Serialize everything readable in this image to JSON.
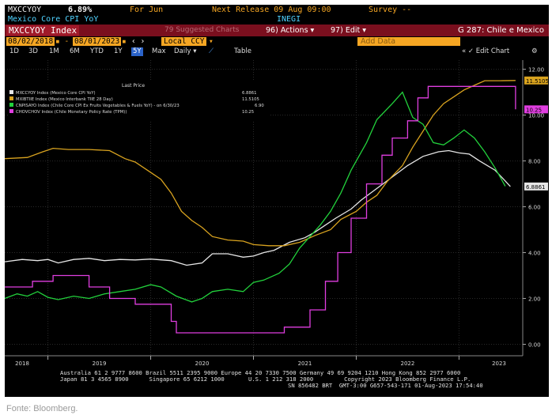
{
  "header": {
    "ticker": "MXCCYOY",
    "value": "6.89%",
    "for_label": "For Jun",
    "release_label": "Next Release 09 Aug 09:00",
    "survey_label": "Survey --",
    "subtitle": "Mexico Core CPI YoY",
    "source": "INEGI"
  },
  "bar": {
    "index_title": "MXCCYOY Index",
    "suggested": "79 Suggested Charts",
    "actions": "96) Actions ▾",
    "edit": "97) Edit ▾",
    "chart_name": "G 287: Chile e Mexico"
  },
  "range": {
    "start": "08/02/2018",
    "end": "08/01/2023",
    "currency": "Local CCY",
    "add_data": "Add Data",
    "edit_chart": "✓ Edit Chart"
  },
  "periods": [
    "1D",
    "3D",
    "1M",
    "6M",
    "YTD",
    "1Y",
    "5Y",
    "Max"
  ],
  "selected_period": "5Y",
  "frequency": "Daily ▾",
  "table_label": "Table",
  "footer": {
    "line1": "Australia 61 2 9777 8600 Brazil 5511 2395 9000 Europe 44 20 7330 7500 Germany 49 69 9204 1210 Hong Kong 852 2977 6000",
    "line2": "Japan 81 3 4565 8900      Singapore 65 6212 1000       U.S. 1 212 318 2000         Copyright 2023 Bloomberg Finance L.P.",
    "line3": "SN 856482 BRT  GMT-3:00 G657-543-171 01-Aug-2023 17:54:40"
  },
  "source_note": "Fonte: Bloomberg.",
  "chart_data": {
    "type": "line",
    "x_axis_labels": [
      "2018",
      "2019",
      "2020",
      "2021",
      "2022",
      "2023"
    ],
    "y_ticks": [
      "0.00",
      "2.00",
      "4.00",
      "6.00",
      "8.00",
      "10.00",
      "12.00"
    ],
    "ylim": [
      -0.5,
      12.4
    ],
    "xlim": [
      2018.58,
      2023.62
    ],
    "legend_heading": "Last Price",
    "legend_position": "top-left",
    "grid": true,
    "series": [
      {
        "name": "MXCCYOY Index (Mexico Core CPI YoY)",
        "last": "6.8861",
        "color": "#e6e6e6",
        "points": [
          [
            2018.58,
            3.6
          ],
          [
            2018.75,
            3.7
          ],
          [
            2018.9,
            3.65
          ],
          [
            2019.0,
            3.7
          ],
          [
            2019.1,
            3.55
          ],
          [
            2019.25,
            3.7
          ],
          [
            2019.4,
            3.75
          ],
          [
            2019.55,
            3.65
          ],
          [
            2019.7,
            3.7
          ],
          [
            2019.85,
            3.68
          ],
          [
            2020.0,
            3.72
          ],
          [
            2020.2,
            3.65
          ],
          [
            2020.35,
            3.45
          ],
          [
            2020.5,
            3.55
          ],
          [
            2020.6,
            3.95
          ],
          [
            2020.75,
            3.95
          ],
          [
            2020.9,
            3.8
          ],
          [
            2021.0,
            3.85
          ],
          [
            2021.1,
            4.0
          ],
          [
            2021.2,
            4.1
          ],
          [
            2021.35,
            4.45
          ],
          [
            2021.5,
            4.65
          ],
          [
            2021.6,
            4.9
          ],
          [
            2021.7,
            5.2
          ],
          [
            2021.8,
            5.5
          ],
          [
            2021.95,
            5.9
          ],
          [
            2022.05,
            6.3
          ],
          [
            2022.2,
            6.8
          ],
          [
            2022.35,
            7.3
          ],
          [
            2022.5,
            7.8
          ],
          [
            2022.65,
            8.2
          ],
          [
            2022.8,
            8.4
          ],
          [
            2022.9,
            8.45
          ],
          [
            2023.0,
            8.35
          ],
          [
            2023.1,
            8.3
          ],
          [
            2023.2,
            8.0
          ],
          [
            2023.35,
            7.6
          ],
          [
            2023.5,
            6.8861
          ]
        ]
      },
      {
        "name": "MXIBTIIE Index (Mexico Interbank TIIE 28 Day)",
        "last": "11.5105",
        "color": "#d9a31f",
        "points": [
          [
            2018.58,
            8.1
          ],
          [
            2018.8,
            8.15
          ],
          [
            2018.95,
            8.4
          ],
          [
            2019.05,
            8.55
          ],
          [
            2019.2,
            8.5
          ],
          [
            2019.4,
            8.5
          ],
          [
            2019.6,
            8.45
          ],
          [
            2019.75,
            8.1
          ],
          [
            2019.85,
            7.95
          ],
          [
            2020.0,
            7.5
          ],
          [
            2020.1,
            7.2
          ],
          [
            2020.2,
            6.6
          ],
          [
            2020.3,
            5.8
          ],
          [
            2020.4,
            5.4
          ],
          [
            2020.5,
            5.1
          ],
          [
            2020.6,
            4.7
          ],
          [
            2020.75,
            4.55
          ],
          [
            2020.9,
            4.5
          ],
          [
            2021.0,
            4.35
          ],
          [
            2021.15,
            4.3
          ],
          [
            2021.3,
            4.3
          ],
          [
            2021.45,
            4.45
          ],
          [
            2021.6,
            4.75
          ],
          [
            2021.75,
            5.0
          ],
          [
            2021.85,
            5.45
          ],
          [
            2022.0,
            5.8
          ],
          [
            2022.1,
            6.2
          ],
          [
            2022.2,
            6.5
          ],
          [
            2022.3,
            7.1
          ],
          [
            2022.45,
            7.8
          ],
          [
            2022.55,
            8.6
          ],
          [
            2022.65,
            9.3
          ],
          [
            2022.75,
            10.0
          ],
          [
            2022.85,
            10.5
          ],
          [
            2022.95,
            10.8
          ],
          [
            2023.05,
            11.1
          ],
          [
            2023.15,
            11.3
          ],
          [
            2023.25,
            11.5
          ],
          [
            2023.4,
            11.5
          ],
          [
            2023.55,
            11.5105
          ]
        ]
      },
      {
        "name": "CNPISAYO Index (Chile Core CPI Ex Fruits Vegetables & Fuels YoY) - on 6/30/23",
        "last": "6.90",
        "color": "#22d13c",
        "points": [
          [
            2018.58,
            2.0
          ],
          [
            2018.7,
            2.2
          ],
          [
            2018.8,
            2.1
          ],
          [
            2018.9,
            2.3
          ],
          [
            2019.0,
            2.05
          ],
          [
            2019.1,
            1.95
          ],
          [
            2019.25,
            2.1
          ],
          [
            2019.4,
            2.0
          ],
          [
            2019.55,
            2.2
          ],
          [
            2019.7,
            2.3
          ],
          [
            2019.85,
            2.4
          ],
          [
            2020.0,
            2.6
          ],
          [
            2020.1,
            2.5
          ],
          [
            2020.25,
            2.1
          ],
          [
            2020.4,
            1.85
          ],
          [
            2020.5,
            2.0
          ],
          [
            2020.6,
            2.3
          ],
          [
            2020.75,
            2.4
          ],
          [
            2020.9,
            2.3
          ],
          [
            2021.0,
            2.7
          ],
          [
            2021.1,
            2.8
          ],
          [
            2021.25,
            3.1
          ],
          [
            2021.35,
            3.5
          ],
          [
            2021.45,
            4.2
          ],
          [
            2021.55,
            4.7
          ],
          [
            2021.65,
            5.2
          ],
          [
            2021.75,
            5.8
          ],
          [
            2021.85,
            6.6
          ],
          [
            2021.95,
            7.6
          ],
          [
            2022.1,
            8.8
          ],
          [
            2022.2,
            9.8
          ],
          [
            2022.35,
            10.5
          ],
          [
            2022.45,
            11.0
          ],
          [
            2022.55,
            9.9
          ],
          [
            2022.65,
            9.6
          ],
          [
            2022.75,
            8.8
          ],
          [
            2022.85,
            8.7
          ],
          [
            2022.95,
            9.0
          ],
          [
            2023.05,
            9.35
          ],
          [
            2023.15,
            9.0
          ],
          [
            2023.25,
            8.4
          ],
          [
            2023.35,
            7.7
          ],
          [
            2023.45,
            6.9
          ]
        ]
      },
      {
        "name": "CHOVCHOV Index (Chile Monetary Policy Rate (TPM))",
        "last": "10.25",
        "color": "#e03ee0",
        "points": [
          [
            2018.58,
            2.5
          ],
          [
            2018.85,
            2.5
          ],
          [
            2018.85,
            2.75
          ],
          [
            2019.05,
            2.75
          ],
          [
            2019.05,
            3.0
          ],
          [
            2019.4,
            3.0
          ],
          [
            2019.4,
            2.5
          ],
          [
            2019.6,
            2.5
          ],
          [
            2019.6,
            2.0
          ],
          [
            2019.85,
            2.0
          ],
          [
            2019.85,
            1.75
          ],
          [
            2020.2,
            1.75
          ],
          [
            2020.2,
            1.0
          ],
          [
            2020.25,
            1.0
          ],
          [
            2020.25,
            0.5
          ],
          [
            2021.3,
            0.5
          ],
          [
            2021.3,
            0.75
          ],
          [
            2021.55,
            0.75
          ],
          [
            2021.55,
            1.5
          ],
          [
            2021.7,
            1.5
          ],
          [
            2021.7,
            2.75
          ],
          [
            2021.82,
            2.75
          ],
          [
            2021.82,
            4.0
          ],
          [
            2021.95,
            4.0
          ],
          [
            2021.95,
            5.5
          ],
          [
            2022.1,
            5.5
          ],
          [
            2022.1,
            7.0
          ],
          [
            2022.25,
            7.0
          ],
          [
            2022.25,
            8.25
          ],
          [
            2022.35,
            8.25
          ],
          [
            2022.35,
            9.0
          ],
          [
            2022.5,
            9.0
          ],
          [
            2022.5,
            9.75
          ],
          [
            2022.6,
            9.75
          ],
          [
            2022.6,
            10.75
          ],
          [
            2022.7,
            10.75
          ],
          [
            2022.7,
            11.25
          ],
          [
            2023.55,
            11.25
          ],
          [
            2023.55,
            10.25
          ]
        ]
      }
    ]
  },
  "colors": {
    "background": "#000000",
    "title_bar": "#7a0f1e",
    "amber": "#f5a623",
    "grid": "#2a2a2a"
  }
}
